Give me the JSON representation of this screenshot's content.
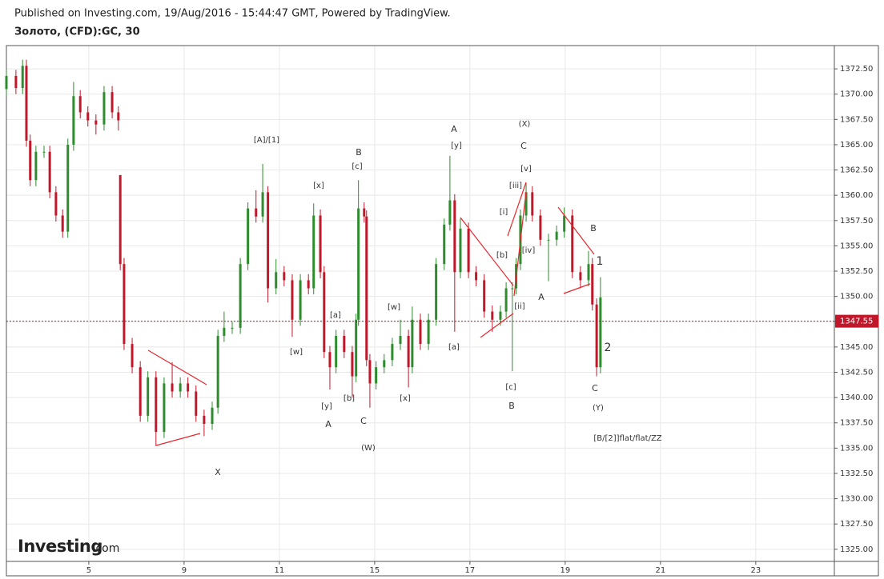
{
  "header": {
    "published": "Published on Investing.com, 19/Aug/2016 - 15:44:47 GMT, Powered by TradingView.",
    "symbol": "Золото, (CFD):GC, 30"
  },
  "logo": {
    "brand": "Investing",
    "suffix": ".com"
  },
  "chart_data": {
    "type": "candlestick",
    "up_color": "#2e8b2e",
    "down_color": "#c0182a",
    "grid": true,
    "xlim": [
      -1.73,
      15.65
    ],
    "ylim": [
      1323.8,
      1374.8
    ],
    "xticks": [
      {
        "value": 0,
        "label": "5"
      },
      {
        "value": 2,
        "label": "9"
      },
      {
        "value": 4,
        "label": "11"
      },
      {
        "value": 6,
        "label": "15"
      },
      {
        "value": 8,
        "label": "17"
      },
      {
        "value": 10,
        "label": "19"
      },
      {
        "value": 12,
        "label": "21"
      },
      {
        "value": 14,
        "label": "23"
      }
    ],
    "yticks": [
      {
        "value": 1325,
        "label": "1325.00"
      },
      {
        "value": 1327.5,
        "label": "1327.50"
      },
      {
        "value": 1330,
        "label": "1330.00"
      },
      {
        "value": 1332.5,
        "label": "1332.50"
      },
      {
        "value": 1335,
        "label": "1335.00"
      },
      {
        "value": 1337.5,
        "label": "1337.50"
      },
      {
        "value": 1340,
        "label": "1340.00"
      },
      {
        "value": 1342.5,
        "label": "1342.50"
      },
      {
        "value": 1345,
        "label": "1345.00"
      },
      {
        "value": 1347.5,
        "label": "1347.50"
      },
      {
        "value": 1350,
        "label": "1350.00"
      },
      {
        "value": 1352.5,
        "label": "1352.50"
      },
      {
        "value": 1355,
        "label": "1355.00"
      },
      {
        "value": 1357.5,
        "label": "1357.50"
      },
      {
        "value": 1360,
        "label": "1360.00"
      },
      {
        "value": 1362.5,
        "label": "1362.50"
      },
      {
        "value": 1365,
        "label": "1365.00"
      },
      {
        "value": 1367.5,
        "label": "1367.50"
      },
      {
        "value": 1370,
        "label": "1370.00"
      },
      {
        "value": 1372.5,
        "label": "1372.50"
      }
    ],
    "last_price": {
      "value": 1347.55,
      "label": "1347.55"
    },
    "x": [
      -1.73,
      -1.53,
      -1.39,
      -1.31,
      -1.23,
      -1.11,
      -0.94,
      -0.82,
      -0.69,
      -0.55,
      -0.44,
      -0.32,
      -0.18,
      -0.02,
      0.15,
      0.32,
      0.49,
      0.62,
      0.66,
      0.74,
      0.91,
      1.08,
      1.24,
      1.41,
      1.58,
      1.75,
      1.92,
      2.08,
      2.25,
      2.42,
      2.59,
      2.71,
      2.84,
      3.01,
      3.18,
      3.34,
      3.51,
      3.65,
      3.76,
      3.93,
      4.1,
      4.27,
      4.44,
      4.61,
      4.72,
      4.86,
      4.94,
      5.06,
      5.19,
      5.36,
      5.53,
      5.61,
      5.66,
      5.78,
      5.83,
      5.9,
      6.03,
      6.2,
      6.37,
      6.54,
      6.71,
      6.79,
      6.96,
      7.13,
      7.29,
      7.46,
      7.58,
      7.68,
      7.8,
      7.97,
      8.13,
      8.3,
      8.47,
      8.64,
      8.76,
      8.89,
      8.97,
      9.06,
      9.18,
      9.31,
      9.48,
      9.65,
      9.82,
      9.98,
      10.15,
      10.32,
      10.49,
      10.57,
      10.66,
      10.74
    ],
    "open": [
      1370.5,
      1371.8,
      1370.6,
      1372.8,
      1365.4,
      1361.5,
      1364.3,
      1364.3,
      1360.3,
      1358.0,
      1356.4,
      1365.0,
      1369.8,
      1368.2,
      1367.4,
      1367.0,
      1370.2,
      1368.2,
      1362.0,
      1353.2,
      1345.3,
      1343.0,
      1338.2,
      1342.0,
      1336.6,
      1341.4,
      1340.6,
      1341.4,
      1340.6,
      1338.2,
      1337.4,
      1339.0,
      1346.1,
      1346.9,
      1346.9,
      1353.2,
      1358.7,
      1357.9,
      1360.3,
      1350.8,
      1352.4,
      1351.6,
      1347.7,
      1351.6,
      1350.8,
      1358.0,
      1352.4,
      1344.5,
      1343.0,
      1346.1,
      1344.5,
      1342.1,
      1347.7,
      1358.7,
      1357.9,
      1343.7,
      1341.4,
      1343.0,
      1343.7,
      1345.3,
      1346.1,
      1343.0,
      1347.7,
      1345.3,
      1347.7,
      1353.2,
      1357.1,
      1359.5,
      1352.4,
      1356.7,
      1352.4,
      1351.6,
      1348.5,
      1347.7,
      1348.5,
      1350.8,
      1350.8,
      1353.2,
      1358.0,
      1360.3,
      1358.0,
      1355.6,
      1355.6,
      1356.4,
      1358.0,
      1352.4,
      1351.6,
      1353.2,
      1349.2,
      1343.0
    ],
    "high": [
      1372.4,
      1372.4,
      1373.4,
      1373.4,
      1366.0,
      1364.9,
      1364.9,
      1364.9,
      1360.9,
      1358.6,
      1365.6,
      1371.2,
      1370.4,
      1368.8,
      1368.0,
      1370.8,
      1370.8,
      1368.8,
      1362.0,
      1353.8,
      1345.9,
      1343.6,
      1342.6,
      1342.6,
      1342.0,
      1343.5,
      1342.0,
      1342.0,
      1341.2,
      1338.8,
      1339.6,
      1346.7,
      1348.5,
      1347.5,
      1353.8,
      1359.3,
      1360.5,
      1363.1,
      1360.9,
      1353.7,
      1353.0,
      1352.2,
      1352.2,
      1352.2,
      1359.2,
      1358.6,
      1353.0,
      1345.1,
      1346.7,
      1346.7,
      1345.1,
      1348.3,
      1361.5,
      1359.3,
      1358.5,
      1344.3,
      1343.6,
      1344.3,
      1345.9,
      1347.7,
      1346.7,
      1349.0,
      1348.3,
      1348.3,
      1353.8,
      1357.7,
      1363.9,
      1360.1,
      1357.7,
      1357.3,
      1353.0,
      1352.2,
      1349.1,
      1349.1,
      1351.4,
      1351.4,
      1353.8,
      1358.6,
      1361.2,
      1360.9,
      1358.6,
      1356.2,
      1357.0,
      1358.8,
      1358.6,
      1353.0,
      1354.5,
      1353.8,
      1349.8,
      1351.9
    ],
    "low": [
      1369.9,
      1370.0,
      1370.0,
      1364.8,
      1360.9,
      1360.9,
      1363.7,
      1359.7,
      1357.4,
      1355.8,
      1355.8,
      1364.4,
      1367.6,
      1366.8,
      1366.0,
      1366.4,
      1367.6,
      1366.4,
      1352.6,
      1344.7,
      1342.4,
      1337.6,
      1337.6,
      1335.2,
      1336.0,
      1340.0,
      1340.0,
      1340.0,
      1337.6,
      1336.2,
      1336.8,
      1338.4,
      1345.5,
      1346.3,
      1346.3,
      1352.6,
      1357.3,
      1357.3,
      1349.4,
      1350.2,
      1351.0,
      1346.0,
      1347.1,
      1350.2,
      1350.2,
      1351.8,
      1343.9,
      1340.8,
      1342.4,
      1343.9,
      1340.0,
      1341.5,
      1347.1,
      1357.3,
      1343.1,
      1339.0,
      1340.8,
      1342.4,
      1343.1,
      1344.7,
      1341.0,
      1342.4,
      1344.7,
      1344.7,
      1347.1,
      1352.6,
      1356.5,
      1346.5,
      1351.8,
      1351.8,
      1351.0,
      1347.9,
      1346.5,
      1347.1,
      1347.9,
      1342.6,
      1350.2,
      1352.6,
      1357.4,
      1357.4,
      1355.0,
      1351.5,
      1355.0,
      1355.8,
      1351.8,
      1350.8,
      1351.0,
      1348.6,
      1342.1,
      1342.4
    ],
    "close": [
      1371.8,
      1370.6,
      1372.8,
      1365.4,
      1361.5,
      1364.3,
      1364.3,
      1360.3,
      1358.0,
      1356.4,
      1365.0,
      1369.8,
      1368.2,
      1367.4,
      1367.0,
      1370.2,
      1368.2,
      1367.4,
      1353.2,
      1345.3,
      1343.0,
      1338.2,
      1342.0,
      1336.6,
      1341.4,
      1340.6,
      1341.4,
      1340.6,
      1338.2,
      1337.4,
      1339.0,
      1346.1,
      1346.9,
      1346.9,
      1353.2,
      1358.7,
      1357.9,
      1360.3,
      1350.8,
      1352.4,
      1351.6,
      1347.7,
      1351.6,
      1350.8,
      1358.0,
      1352.4,
      1344.5,
      1343.0,
      1346.1,
      1344.5,
      1342.1,
      1347.7,
      1358.7,
      1357.9,
      1343.7,
      1341.4,
      1343.0,
      1343.7,
      1345.3,
      1346.1,
      1343.0,
      1347.7,
      1345.3,
      1347.7,
      1353.2,
      1357.1,
      1359.5,
      1352.4,
      1356.7,
      1352.4,
      1351.6,
      1348.5,
      1347.7,
      1348.5,
      1350.8,
      1350.8,
      1353.2,
      1358.0,
      1360.3,
      1358.0,
      1355.6,
      1355.6,
      1356.4,
      1358.0,
      1352.4,
      1351.6,
      1353.2,
      1349.2,
      1343.0,
      1349.9
    ],
    "annotations": [
      "[A]/[1]",
      "B",
      "[c]",
      "[x]",
      "A",
      "[y]",
      "(X)",
      "C",
      "[v]",
      "[iii]",
      "[i]",
      "B",
      "1",
      "[b]",
      "[iv]",
      "A",
      "[ii]",
      "[w]",
      "[a]",
      "[w]",
      "[a]",
      "2",
      "[c]",
      "C",
      "[b]",
      "[x]",
      "[y]",
      "B",
      "(Y)",
      "A",
      "C",
      "(W)",
      "X",
      "[B/[2]]flat/flat/ZZ"
    ]
  }
}
